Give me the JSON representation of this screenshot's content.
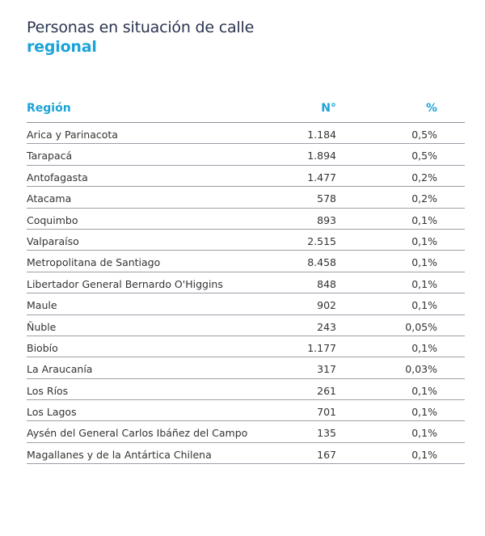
{
  "title": {
    "line1": "Personas en situación de calle",
    "line2": "regional"
  },
  "table": {
    "headers": [
      "Región",
      "N°",
      "%"
    ],
    "rows": [
      [
        "Arica y Parinacota",
        "1.184",
        "0,5%"
      ],
      [
        "Tarapacá",
        "1.894",
        "0,5%"
      ],
      [
        "Antofagasta",
        "1.477",
        "0,2%"
      ],
      [
        "Atacama",
        "578",
        "0,2%"
      ],
      [
        "Coquimbo",
        "893",
        "0,1%"
      ],
      [
        "Valparaíso",
        "2.515",
        "0,1%"
      ],
      [
        "Metropolitana de Santiago",
        "8.458",
        "0,1%"
      ],
      [
        "Libertador General Bernardo O'Higgins",
        "848",
        "0,1%"
      ],
      [
        "Maule",
        "902",
        "0,1%"
      ],
      [
        "Ñuble",
        "243",
        "0,05%"
      ],
      [
        "Biobío",
        "1.177",
        "0,1%"
      ],
      [
        "La Araucanía",
        "317",
        "0,03%"
      ],
      [
        "Los Ríos",
        "261",
        "0,1%"
      ],
      [
        "Los Lagos",
        "701",
        "0,1%"
      ],
      [
        "Aysén del General Carlos Ibáñez del Campo",
        "135",
        "0,1%"
      ],
      [
        "Magallanes y de la Antártica Chilena",
        "167",
        "0,1%"
      ]
    ]
  },
  "colors": {
    "accent": "#1ba3d8",
    "title": "#2b3550"
  }
}
